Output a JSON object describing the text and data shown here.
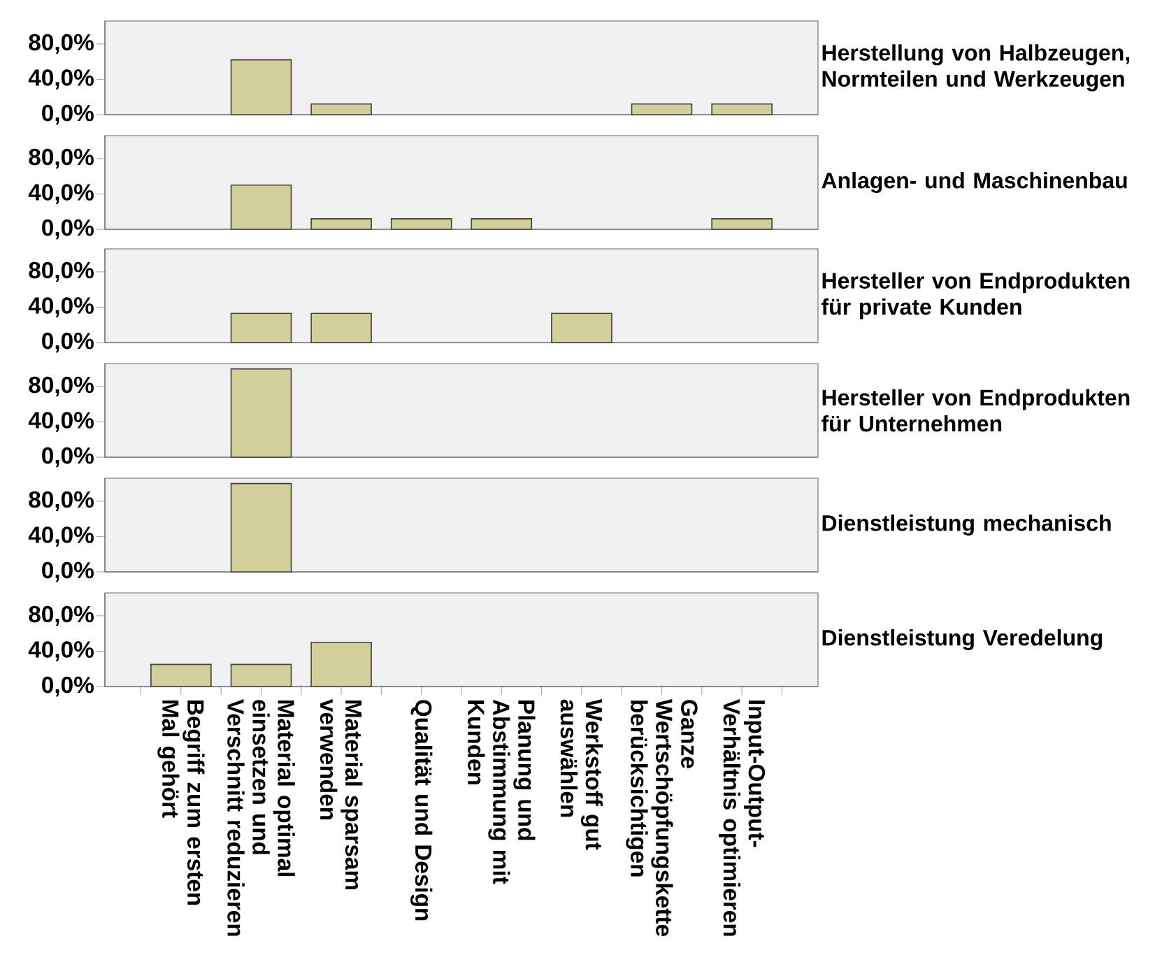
{
  "chart_data": [
    {
      "type": "bar",
      "title": "Herstellung von Halbzeugen, Normteilen und Werkzeugen",
      "categories": [
        null,
        null,
        null,
        null,
        null,
        null,
        null,
        null
      ],
      "values": [
        null,
        62,
        12,
        null,
        null,
        null,
        12,
        12
      ],
      "color": "#d3cf99",
      "ylim": [
        0,
        106
      ],
      "yticks": [
        {
          "value": 0,
          "label": "0,0%"
        },
        {
          "value": 40,
          "label": "40,0%"
        },
        {
          "value": 80,
          "label": "80,0%"
        }
      ],
      "tick_labels": "y"
    },
    {
      "type": "bar",
      "title": "Anlagen- und Maschinenbau",
      "categories": [
        null,
        null,
        null,
        null,
        null,
        null,
        null,
        null
      ],
      "values": [
        null,
        50,
        12,
        12,
        12,
        null,
        null,
        12
      ],
      "color": "#d3cf99",
      "ylim": [
        0,
        106
      ],
      "yticks": [
        {
          "value": 0,
          "label": "0,0%"
        },
        {
          "value": 40,
          "label": "40,0%"
        },
        {
          "value": 80,
          "label": "80,0%"
        }
      ],
      "tick_labels": "y"
    },
    {
      "type": "bar",
      "title": "Hersteller von Endprodukten für private Kunden",
      "categories": [
        null,
        null,
        null,
        null,
        null,
        null,
        null,
        null
      ],
      "values": [
        null,
        33,
        33,
        null,
        null,
        33,
        null,
        null
      ],
      "color": "#d3cf99",
      "ylim": [
        0,
        106
      ],
      "yticks": [
        {
          "value": 0,
          "label": "0,0%"
        },
        {
          "value": 40,
          "label": "40,0%"
        },
        {
          "value": 80,
          "label": "80,0%"
        }
      ],
      "tick_labels": "y"
    },
    {
      "type": "bar",
      "title": "Hersteller von Endprodukten für Unternehmen",
      "categories": [
        null,
        null,
        null,
        null,
        null,
        null,
        null,
        null
      ],
      "values": [
        null,
        100,
        null,
        null,
        null,
        null,
        null,
        null
      ],
      "color": "#d3cf99",
      "ylim": [
        0,
        106
      ],
      "yticks": [
        {
          "value": 0,
          "label": "0,0%"
        },
        {
          "value": 40,
          "label": "40,0%"
        },
        {
          "value": 80,
          "label": "80,0%"
        }
      ],
      "tick_labels": "y"
    },
    {
      "type": "bar",
      "title": "Dienstleistung mechanisch",
      "categories": [
        null,
        null,
        null,
        null,
        null,
        null,
        null,
        null
      ],
      "values": [
        null,
        100,
        null,
        null,
        null,
        null,
        null,
        null
      ],
      "color": "#d3cf99",
      "ylim": [
        0,
        106
      ],
      "yticks": [
        {
          "value": 0,
          "label": "0,0%"
        },
        {
          "value": 40,
          "label": "40,0%"
        },
        {
          "value": 80,
          "label": "80,0%"
        }
      ],
      "tick_labels": "y"
    },
    {
      "type": "bar",
      "title": "Dienstleistung Veredelung",
      "categories": [
        "Begriff zum ersten Mal gehört",
        "Material optimal einsetzen und Verschnitt reduzieren",
        "Material sparsam verwenden",
        "Qualität und Design",
        "Planung und Abstimmung mit Kunden",
        "Werkstoff gut auswählen",
        "Ganze Wertschöpfungskette berücksichtigen",
        "Input-Output-Verhältnis optimieren"
      ],
      "values": [
        25,
        25,
        50,
        null,
        null,
        null,
        null,
        null
      ],
      "color": "#d3cf99",
      "ylim": [
        0,
        106
      ],
      "yticks": [
        {
          "value": 0,
          "label": "0,0%"
        },
        {
          "value": 40,
          "label": "40,0%"
        },
        {
          "value": 80,
          "label": "80,0%"
        }
      ]
    }
  ]
}
